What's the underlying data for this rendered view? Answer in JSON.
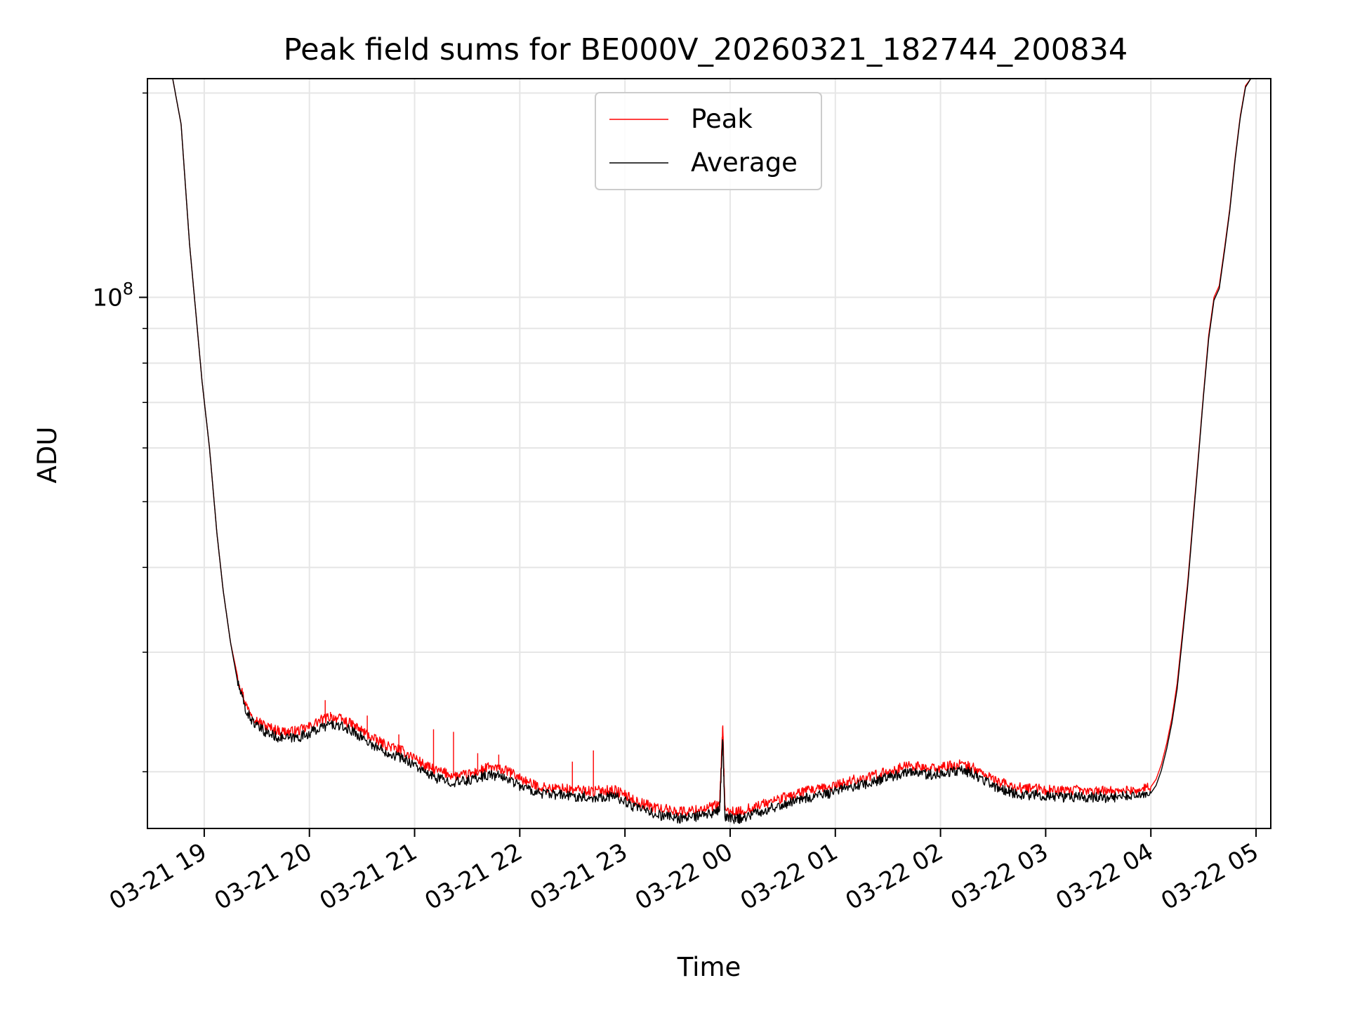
{
  "chart_data": {
    "type": "line",
    "title": "Peak field sums for BE000V_20260321_182744_200834",
    "xlabel": "Time",
    "ylabel": "ADU",
    "yscale": "log",
    "ylim": [
      16500000,
      210000000
    ],
    "xlim_hours": [
      18.46,
      29.14
    ],
    "grid": true,
    "legend_position": "top-center",
    "x_ticks": [
      {
        "hour": 19,
        "label": "03-21 19"
      },
      {
        "hour": 20,
        "label": "03-21 20"
      },
      {
        "hour": 21,
        "label": "03-21 21"
      },
      {
        "hour": 22,
        "label": "03-21 22"
      },
      {
        "hour": 23,
        "label": "03-21 23"
      },
      {
        "hour": 24,
        "label": "03-22 00"
      },
      {
        "hour": 25,
        "label": "03-22 01"
      },
      {
        "hour": 26,
        "label": "03-22 02"
      },
      {
        "hour": 27,
        "label": "03-22 03"
      },
      {
        "hour": 28,
        "label": "03-22 04"
      },
      {
        "hour": 29,
        "label": "03-22 05"
      }
    ],
    "y_major_ticks": [
      {
        "value": 100000000,
        "base": "10",
        "exp": "8"
      }
    ],
    "y_minor_ticks": [
      20000000,
      30000000,
      40000000,
      50000000,
      60000000,
      70000000,
      80000000,
      90000000,
      200000000
    ],
    "series": [
      {
        "name": "Peak",
        "color": "#ff0000",
        "points": [
          [
            18.7,
            210000000
          ],
          [
            18.78,
            180000000
          ],
          [
            18.86,
            120000000
          ],
          [
            18.92,
            95000000
          ],
          [
            18.98,
            75000000
          ],
          [
            19.05,
            60000000
          ],
          [
            19.12,
            45000000
          ],
          [
            19.18,
            37000000
          ],
          [
            19.25,
            31000000
          ],
          [
            19.32,
            27500000
          ],
          [
            19.4,
            25000000
          ],
          [
            19.5,
            23800000
          ],
          [
            19.6,
            23300000
          ],
          [
            19.7,
            23000000
          ],
          [
            19.8,
            22900000
          ],
          [
            19.9,
            23000000
          ],
          [
            20.0,
            23300000
          ],
          [
            20.1,
            23800000
          ],
          [
            20.2,
            24100000
          ],
          [
            20.3,
            23900000
          ],
          [
            20.4,
            23500000
          ],
          [
            20.5,
            23000000
          ],
          [
            20.6,
            22400000
          ],
          [
            20.7,
            22000000
          ],
          [
            20.8,
            21700000
          ],
          [
            20.9,
            21400000
          ],
          [
            21.0,
            21000000
          ],
          [
            21.1,
            20400000
          ],
          [
            21.2,
            20100000
          ],
          [
            21.3,
            19900000
          ],
          [
            21.4,
            19700000
          ],
          [
            21.5,
            19800000
          ],
          [
            21.6,
            20000000
          ],
          [
            21.7,
            20300000
          ],
          [
            21.8,
            20200000
          ],
          [
            21.9,
            20000000
          ],
          [
            22.0,
            19600000
          ],
          [
            22.1,
            19200000
          ],
          [
            22.2,
            19000000
          ],
          [
            22.3,
            18900000
          ],
          [
            22.4,
            18900000
          ],
          [
            22.5,
            18800000
          ],
          [
            22.6,
            18800000
          ],
          [
            22.7,
            18700000
          ],
          [
            22.8,
            18800000
          ],
          [
            22.9,
            18800000
          ],
          [
            23.0,
            18500000
          ],
          [
            23.1,
            18100000
          ],
          [
            23.2,
            17900000
          ],
          [
            23.3,
            17700000
          ],
          [
            23.4,
            17600000
          ],
          [
            23.5,
            17500000
          ],
          [
            23.6,
            17500000
          ],
          [
            23.7,
            17600000
          ],
          [
            23.8,
            17700000
          ],
          [
            23.9,
            17900000
          ],
          [
            23.93,
            23500000
          ],
          [
            23.95,
            17600000
          ],
          [
            24.05,
            17400000
          ],
          [
            24.1,
            17500000
          ],
          [
            24.2,
            17700000
          ],
          [
            24.3,
            17900000
          ],
          [
            24.4,
            18100000
          ],
          [
            24.5,
            18300000
          ],
          [
            24.6,
            18500000
          ],
          [
            24.7,
            18700000
          ],
          [
            24.8,
            18800000
          ],
          [
            24.9,
            18900000
          ],
          [
            25.0,
            19100000
          ],
          [
            25.1,
            19300000
          ],
          [
            25.2,
            19500000
          ],
          [
            25.3,
            19600000
          ],
          [
            25.4,
            19800000
          ],
          [
            25.5,
            20000000
          ],
          [
            25.6,
            20200000
          ],
          [
            25.7,
            20500000
          ],
          [
            25.8,
            20300000
          ],
          [
            25.9,
            20200000
          ],
          [
            26.0,
            20300000
          ],
          [
            26.1,
            20400000
          ],
          [
            26.2,
            20500000
          ],
          [
            26.3,
            20300000
          ],
          [
            26.4,
            19900000
          ],
          [
            26.5,
            19500000
          ],
          [
            26.6,
            19200000
          ],
          [
            26.7,
            19000000
          ],
          [
            26.8,
            18900000
          ],
          [
            26.9,
            18900000
          ],
          [
            27.0,
            18800000
          ],
          [
            27.1,
            18800000
          ],
          [
            27.2,
            18700000
          ],
          [
            27.3,
            18800000
          ],
          [
            27.4,
            18700000
          ],
          [
            27.5,
            18800000
          ],
          [
            27.6,
            18700000
          ],
          [
            27.7,
            18800000
          ],
          [
            27.8,
            18800000
          ],
          [
            27.9,
            18800000
          ],
          [
            28.0,
            19000000
          ],
          [
            28.05,
            19500000
          ],
          [
            28.1,
            20500000
          ],
          [
            28.15,
            22000000
          ],
          [
            28.2,
            24000000
          ],
          [
            28.25,
            27000000
          ],
          [
            28.3,
            32000000
          ],
          [
            28.35,
            38000000
          ],
          [
            28.4,
            47000000
          ],
          [
            28.45,
            58000000
          ],
          [
            28.5,
            72000000
          ],
          [
            28.55,
            88000000
          ],
          [
            28.6,
            100000000
          ],
          [
            28.65,
            104000000
          ],
          [
            28.7,
            118000000
          ],
          [
            28.75,
            135000000
          ],
          [
            28.8,
            160000000
          ],
          [
            28.85,
            185000000
          ],
          [
            28.9,
            205000000
          ],
          [
            28.95,
            210000000
          ],
          [
            29.14,
            210000000
          ]
        ],
        "spikes": [
          [
            20.15,
            25500000
          ],
          [
            20.2,
            24500000
          ],
          [
            20.55,
            24200000
          ],
          [
            20.85,
            22700000
          ],
          [
            21.18,
            23100000
          ],
          [
            21.37,
            22900000
          ],
          [
            21.6,
            21300000
          ],
          [
            21.8,
            21200000
          ],
          [
            22.5,
            20700000
          ],
          [
            22.7,
            21500000
          ]
        ]
      },
      {
        "name": "Average",
        "color": "#000000",
        "points": [
          [
            18.7,
            210000000
          ],
          [
            18.78,
            180000000
          ],
          [
            18.86,
            120000000
          ],
          [
            18.92,
            95000000
          ],
          [
            18.98,
            75000000
          ],
          [
            19.05,
            60000000
          ],
          [
            19.12,
            45000000
          ],
          [
            19.18,
            37000000
          ],
          [
            19.25,
            31000000
          ],
          [
            19.32,
            27000000
          ],
          [
            19.4,
            24500000
          ],
          [
            19.5,
            23300000
          ],
          [
            19.6,
            22800000
          ],
          [
            19.7,
            22500000
          ],
          [
            19.8,
            22400000
          ],
          [
            19.9,
            22500000
          ],
          [
            20.0,
            22800000
          ],
          [
            20.1,
            23200000
          ],
          [
            20.2,
            23500000
          ],
          [
            20.3,
            23300000
          ],
          [
            20.4,
            23000000
          ],
          [
            20.5,
            22500000
          ],
          [
            20.6,
            21900000
          ],
          [
            20.7,
            21500000
          ],
          [
            20.8,
            21200000
          ],
          [
            20.9,
            20900000
          ],
          [
            21.0,
            20500000
          ],
          [
            21.1,
            19900000
          ],
          [
            21.2,
            19600000
          ],
          [
            21.3,
            19400000
          ],
          [
            21.4,
            19300000
          ],
          [
            21.5,
            19400000
          ],
          [
            21.6,
            19600000
          ],
          [
            21.7,
            19800000
          ],
          [
            21.8,
            19700000
          ],
          [
            21.9,
            19500000
          ],
          [
            22.0,
            19100000
          ],
          [
            22.1,
            18800000
          ],
          [
            22.2,
            18600000
          ],
          [
            22.3,
            18500000
          ],
          [
            22.4,
            18500000
          ],
          [
            22.5,
            18400000
          ],
          [
            22.6,
            18400000
          ],
          [
            22.7,
            18300000
          ],
          [
            22.8,
            18400000
          ],
          [
            22.9,
            18400000
          ],
          [
            23.0,
            18100000
          ],
          [
            23.1,
            17700000
          ],
          [
            23.2,
            17500000
          ],
          [
            23.3,
            17300000
          ],
          [
            23.4,
            17200000
          ],
          [
            23.5,
            17100000
          ],
          [
            23.6,
            17100000
          ],
          [
            23.7,
            17200000
          ],
          [
            23.8,
            17300000
          ],
          [
            23.9,
            17500000
          ],
          [
            23.93,
            22500000
          ],
          [
            23.95,
            17200000
          ],
          [
            24.05,
            17000000
          ],
          [
            24.1,
            17100000
          ],
          [
            24.2,
            17300000
          ],
          [
            24.3,
            17500000
          ],
          [
            24.4,
            17700000
          ],
          [
            24.5,
            17900000
          ],
          [
            24.6,
            18100000
          ],
          [
            24.7,
            18300000
          ],
          [
            24.8,
            18400000
          ],
          [
            24.9,
            18500000
          ],
          [
            25.0,
            18700000
          ],
          [
            25.1,
            18900000
          ],
          [
            25.2,
            19100000
          ],
          [
            25.3,
            19200000
          ],
          [
            25.4,
            19400000
          ],
          [
            25.5,
            19600000
          ],
          [
            25.6,
            19800000
          ],
          [
            25.7,
            20100000
          ],
          [
            25.8,
            19900000
          ],
          [
            25.9,
            19800000
          ],
          [
            26.0,
            19900000
          ],
          [
            26.1,
            20000000
          ],
          [
            26.2,
            20100000
          ],
          [
            26.3,
            19900000
          ],
          [
            26.4,
            19500000
          ],
          [
            26.5,
            19100000
          ],
          [
            26.6,
            18800000
          ],
          [
            26.7,
            18600000
          ],
          [
            26.8,
            18500000
          ],
          [
            26.9,
            18500000
          ],
          [
            27.0,
            18400000
          ],
          [
            27.1,
            18400000
          ],
          [
            27.2,
            18300000
          ],
          [
            27.3,
            18400000
          ],
          [
            27.4,
            18300000
          ],
          [
            27.5,
            18400000
          ],
          [
            27.6,
            18300000
          ],
          [
            27.7,
            18400000
          ],
          [
            27.8,
            18400000
          ],
          [
            27.9,
            18400000
          ],
          [
            28.0,
            18600000
          ],
          [
            28.05,
            19100000
          ],
          [
            28.1,
            20100000
          ],
          [
            28.15,
            21600000
          ],
          [
            28.2,
            23600000
          ],
          [
            28.25,
            26500000
          ],
          [
            28.3,
            31500000
          ],
          [
            28.35,
            37500000
          ],
          [
            28.4,
            46500000
          ],
          [
            28.45,
            57500000
          ],
          [
            28.5,
            71500000
          ],
          [
            28.55,
            87000000
          ],
          [
            28.6,
            99000000
          ],
          [
            28.65,
            103000000
          ],
          [
            28.7,
            117000000
          ],
          [
            28.75,
            134000000
          ],
          [
            28.8,
            159000000
          ],
          [
            28.85,
            184000000
          ],
          [
            28.9,
            204000000
          ],
          [
            28.95,
            210000000
          ],
          [
            29.14,
            210000000
          ]
        ],
        "spikes": []
      }
    ]
  }
}
